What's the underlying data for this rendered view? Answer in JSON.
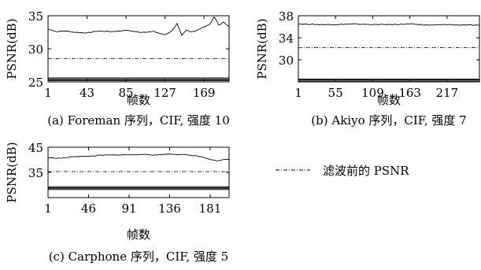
{
  "legend": {
    "label": "滤波前的 PSNR",
    "placement": "right"
  },
  "chart_data": [
    {
      "type": "line",
      "caption": "(a) Foreman 序列，CIF, 强度 10",
      "xlabel": "帧数",
      "ylabel": "PSNR(dB)",
      "xlim": [
        1,
        196
      ],
      "ylim": [
        25,
        35
      ],
      "xticks": [
        1,
        43,
        85,
        127,
        169
      ],
      "yticks": [
        25,
        30,
        35
      ],
      "series": [
        {
          "style": "solid",
          "x": [
            1,
            10,
            20,
            30,
            43,
            55,
            70,
            85,
            100,
            115,
            127,
            135,
            140,
            145,
            150,
            155,
            160,
            169,
            175,
            180,
            185,
            190,
            196
          ],
          "y": [
            33,
            32.6,
            32.7,
            32.5,
            32.4,
            32.7,
            32.6,
            32.8,
            32.5,
            32.6,
            32.1,
            32.8,
            33.8,
            32.0,
            32.8,
            32.6,
            32.7,
            33.3,
            33.7,
            34.8,
            33.6,
            34.0,
            33.4
          ]
        },
        {
          "style": "dashdot",
          "x": [
            1,
            196
          ],
          "y": [
            28.5,
            28.5
          ]
        },
        {
          "style": "dense",
          "x": [
            1,
            196
          ],
          "y": [
            25.6,
            25.6
          ]
        }
      ]
    },
    {
      "type": "line",
      "caption": "(b) Akiyo 序列，CIF, 强度 7",
      "xlabel": "帧数",
      "ylabel": "PSNR(dB)",
      "xlim": [
        1,
        264
      ],
      "ylim": [
        26,
        38
      ],
      "xticks": [
        1,
        55,
        109,
        163,
        217
      ],
      "yticks": [
        30,
        34,
        38
      ],
      "series": [
        {
          "style": "solid",
          "x": [
            1,
            30,
            55,
            80,
            109,
            135,
            163,
            190,
            217,
            240,
            264
          ],
          "y": [
            36.5,
            36.4,
            36.4,
            36.5,
            36.4,
            36.4,
            36.5,
            36.3,
            36.4,
            36.3,
            36.3
          ]
        },
        {
          "style": "dashdot",
          "x": [
            1,
            264
          ],
          "y": [
            32.2,
            32.2
          ]
        },
        {
          "style": "dense",
          "x": [
            1,
            264
          ],
          "y": [
            26.5,
            26.5
          ]
        }
      ]
    },
    {
      "type": "line",
      "caption": "(c) Carphone 序列，CIF, 强度 5",
      "xlabel": "帧数",
      "ylabel": "PSNR(dB)",
      "xlim": [
        1,
        202
      ],
      "ylim": [
        25,
        45
      ],
      "xticks": [
        1,
        46,
        91,
        136,
        181
      ],
      "yticks": [
        35,
        45
      ],
      "series": [
        {
          "style": "solid",
          "x": [
            1,
            15,
            30,
            46,
            60,
            75,
            91,
            105,
            120,
            136,
            150,
            165,
            175,
            181,
            190,
            195,
            202
          ],
          "y": [
            40.8,
            40.6,
            41.3,
            41.4,
            41.8,
            41.9,
            42.0,
            42.1,
            41.9,
            42.3,
            42.1,
            41.6,
            40.8,
            40.0,
            39.5,
            40.1,
            40.2
          ]
        },
        {
          "style": "dashdot",
          "x": [
            1,
            202
          ],
          "y": [
            35.3,
            35.3
          ]
        },
        {
          "style": "dense",
          "x": [
            1,
            202
          ],
          "y": [
            29.3,
            29.3
          ]
        }
      ]
    }
  ]
}
